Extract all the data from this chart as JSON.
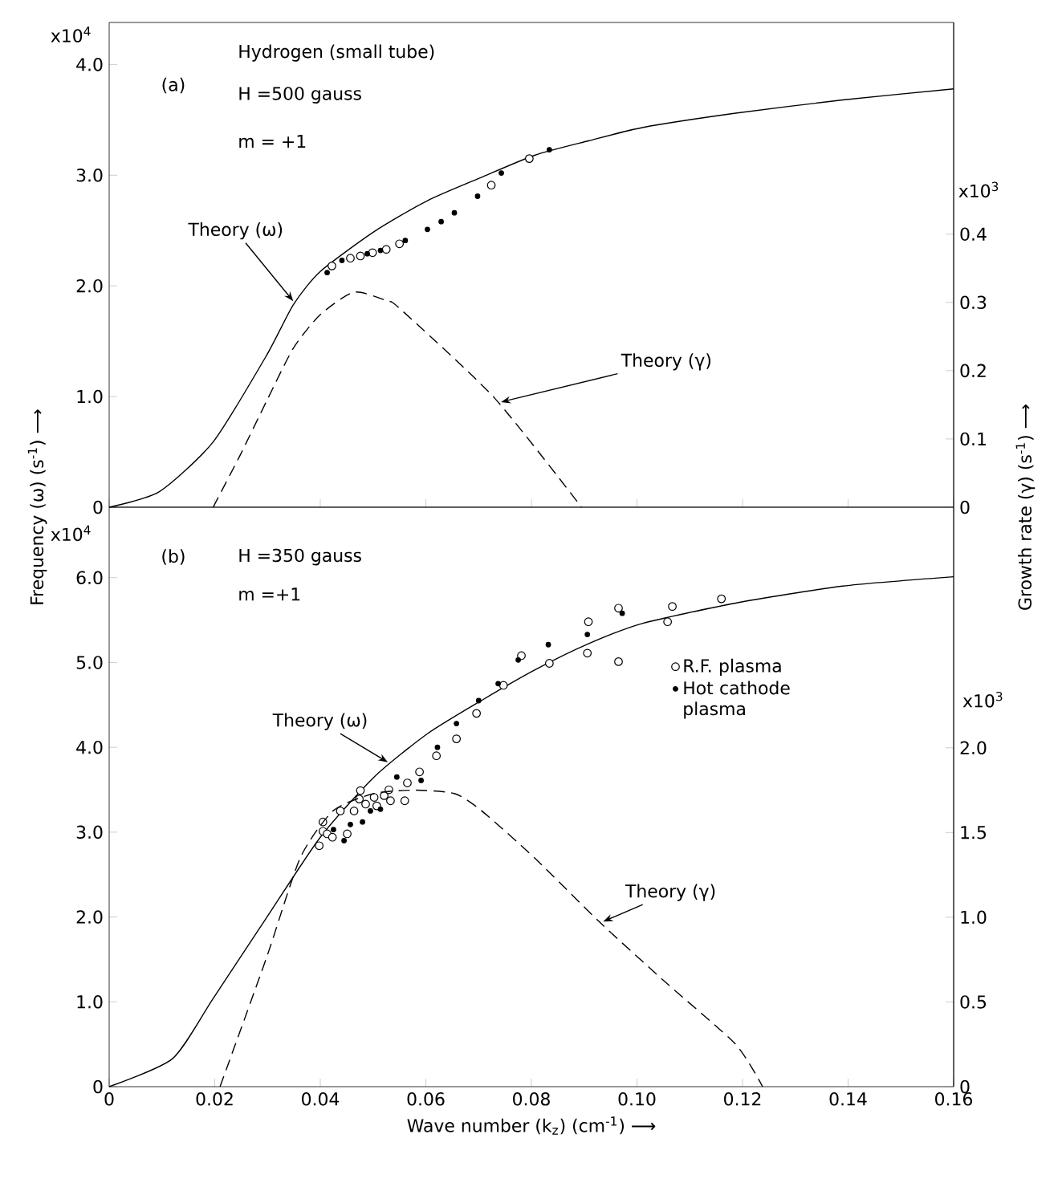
{
  "chart_data": [
    {
      "type": "scatter",
      "xlim": [
        0,
        0.16
      ],
      "ylim": [
        0,
        4.38
      ],
      "y2lim": [
        0,
        0.71
      ],
      "tick_labels": "y",
      "grid": false,
      "legend": false,
      "xticks": [
        0,
        0.02,
        0.04,
        0.06,
        0.08,
        0.1,
        0.12,
        0.14,
        0.16
      ],
      "yticks": [
        0,
        {
          "value": 1,
          "label": "1.0"
        },
        {
          "value": 2,
          "label": "2.0"
        },
        {
          "value": 3,
          "label": "3.0"
        },
        {
          "value": 4,
          "label": "4.0"
        }
      ],
      "y2ticks": [
        0,
        0.1,
        0.2,
        0.3,
        0.4
      ],
      "annotations": [
        "x10$^{4}$",
        "x10$^{3}$",
        "(a)",
        "Hydrogen   (small tube)",
        "H =500 gauss",
        "m = +1"
      ],
      "series": [
        {
          "name": "Theory (ω)",
          "type": "line",
          "color": "#000000",
          "line_style": "solid",
          "x": [
            0,
            0.0095,
            0.0197,
            0.0298,
            0.0349,
            0.04,
            0.0502,
            0.0603,
            0.0705,
            0.0806,
            0.0908,
            0.101,
            0.1187,
            0.139,
            0.16
          ],
          "values": [
            0,
            0.14,
            0.59,
            1.37,
            1.83,
            2.13,
            2.49,
            2.77,
            2.98,
            3.18,
            3.31,
            3.43,
            3.56,
            3.68,
            3.78
          ]
        },
        {
          "name": "Theory (γ)",
          "type": "line",
          "axis": "y2",
          "color": "#000000",
          "line_style": "dashed",
          "x": [
            0.0197,
            0.0248,
            0.0298,
            0.0349,
            0.04,
            0.0464,
            0.0527,
            0.0552,
            0.073,
            0.0895
          ],
          "values": [
            0,
            0.076,
            0.155,
            0.233,
            0.282,
            0.315,
            0.302,
            0.29,
            0.16,
            0
          ]
        },
        {
          "marker": "circle",
          "color": "#ffffff",
          "x": [
            0.0422,
            0.0457,
            0.0476,
            0.0499,
            0.0525,
            0.055,
            0.0724,
            0.0796
          ],
          "values": [
            2.18,
            2.25,
            2.27,
            2.3,
            2.33,
            2.38,
            2.91,
            3.15
          ]
        },
        {
          "marker": "circle",
          "color": "#000000",
          "x": [
            0.0413,
            0.0441,
            0.0489,
            0.0514,
            0.0561,
            0.0603,
            0.0629,
            0.0654,
            0.0698,
            0.0743,
            0.0834
          ],
          "values": [
            2.12,
            2.23,
            2.29,
            2.32,
            2.41,
            2.51,
            2.58,
            2.66,
            2.81,
            3.02,
            3.23
          ]
        }
      ]
    },
    {
      "type": "scatter",
      "xlim": [
        0,
        0.16
      ],
      "ylim": [
        0,
        6.83
      ],
      "y2lim": [
        0,
        3.42
      ],
      "grid": false,
      "legend": "right",
      "xlabel": "Wave  number  (k$_{z}$)  (cm$^{-1}$) ⟶",
      "ylabel": "Frequency  (ω)  (s$^{-1}$)  ⟶",
      "y2label": "Growth  rate  (γ)  (s$^{-1}$)  ⟶",
      "xticks": [
        0,
        0.02,
        0.04,
        0.06,
        0.08,
        {
          "value": 0.1,
          "label": "0.10"
        },
        0.12,
        0.14,
        0.16
      ],
      "yticks": [
        0,
        {
          "value": 1,
          "label": "1.0"
        },
        {
          "value": 2,
          "label": "2.0"
        },
        {
          "value": 3,
          "label": "3.0"
        },
        {
          "value": 4,
          "label": "4.0"
        },
        {
          "value": 5,
          "label": "5.0"
        },
        {
          "value": 6,
          "label": "6.0"
        }
      ],
      "y2ticks": [
        0,
        0.5,
        {
          "value": 1,
          "label": "1.0"
        },
        1.5,
        {
          "value": 2,
          "label": "2.0"
        }
      ],
      "annotations": [
        "x10$^{4}$",
        "x10$^{3}$",
        "(b)",
        "H =350 gauss",
        "m =+1"
      ],
      "series": [
        {
          "name": "Theory (ω)",
          "type": "line",
          "color": "#000000",
          "line_style": "solid",
          "x": [
            0,
            0.012,
            0.0197,
            0.0298,
            0.04,
            0.0502,
            0.0603,
            0.0705,
            0.0806,
            0.0908,
            0.101,
            0.1187,
            0.139,
            0.16
          ],
          "values": [
            0,
            0.33,
            1.04,
            1.99,
            2.94,
            3.65,
            4.16,
            4.55,
            4.91,
            5.22,
            5.46,
            5.7,
            5.9,
            6.01
          ]
        },
        {
          "name": "Theory (γ)",
          "type": "line",
          "axis": "y2",
          "color": "#000000",
          "line_style": "dashed",
          "x": [
            0.021,
            0.0298,
            0.0362,
            0.0425,
            0.0502,
            0.0578,
            0.0654,
            0.0705,
            0.0806,
            0.0933,
            0.106,
            0.1187,
            0.1238
          ],
          "values": [
            0,
            0.76,
            1.35,
            1.63,
            1.73,
            1.75,
            1.73,
            1.63,
            1.35,
            0.96,
            0.6,
            0.25,
            0
          ]
        },
        {
          "name": "R.F. plasma",
          "marker": "circle",
          "color": "#ffffff",
          "x": [
            0.0398,
            0.0405,
            0.0405,
            0.0413,
            0.0423,
            0.0438,
            0.0448,
            0.0451,
            0.0464,
            0.0474,
            0.0476,
            0.0486,
            0.0502,
            0.0507,
            0.0521,
            0.053,
            0.0533,
            0.056,
            0.0565,
            0.0588,
            0.062,
            0.0658,
            0.0696,
            0.0747,
            0.0781,
            0.0834,
            0.0906,
            0.0908,
            0.0965,
            0.0965,
            0.1058,
            0.1067,
            0.116
          ],
          "values": [
            2.84,
            3.12,
            3.01,
            2.98,
            2.94,
            3.25,
            null,
            2.98,
            3.25,
            3.39,
            3.49,
            3.33,
            3.41,
            3.31,
            3.43,
            3.5,
            3.37,
            3.37,
            3.58,
            3.71,
            3.9,
            4.1,
            4.4,
            4.73,
            5.08,
            4.99,
            5.11,
            5.48,
            5.01,
            5.64,
            5.48,
            5.66,
            5.75
          ]
        },
        {
          "name": "Hot cathode plasma",
          "marker": "circle",
          "color": "#000000",
          "x": [
            0.0425,
            0.0445,
            0.0457,
            0.048,
            0.0495,
            0.0514,
            0.0545,
            0.0591,
            0.0622,
            0.0658,
            0.07,
            0.0737,
            0.0775,
            0.0832,
            0.0906,
            0.0972
          ],
          "values": [
            3.03,
            2.9,
            3.09,
            3.12,
            3.25,
            3.27,
            3.65,
            3.61,
            4.0,
            4.28,
            4.55,
            4.75,
            5.03,
            5.21,
            5.33,
            5.58
          ]
        }
      ]
    }
  ]
}
